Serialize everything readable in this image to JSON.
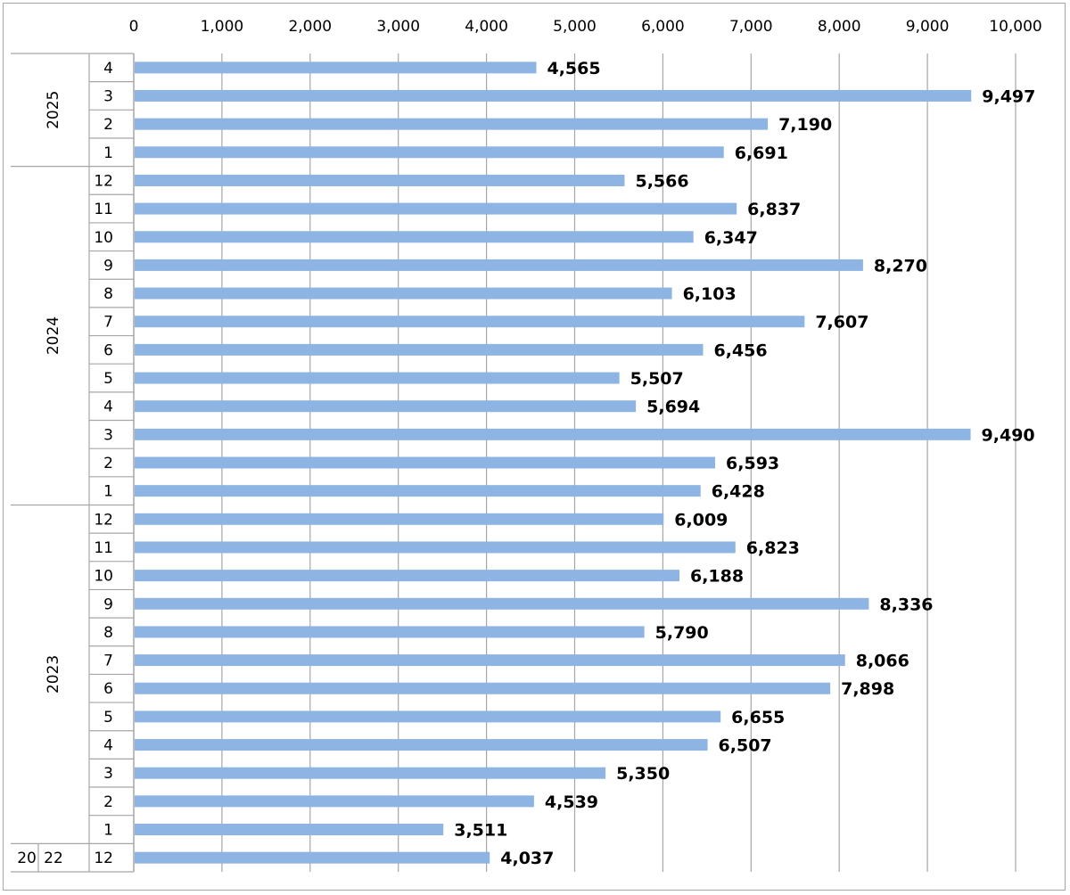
{
  "chart_data": {
    "type": "bar",
    "orientation": "horizontal",
    "xlim": [
      0,
      10000
    ],
    "x_ticks": [
      "0",
      "1,000",
      "2,000",
      "3,000",
      "4,000",
      "5,000",
      "6,000",
      "7,000",
      "8,000",
      "9,000",
      "10,000"
    ],
    "x_axis_position": "top",
    "grid": true,
    "legend": "none",
    "bar_color": "#8eb4e3",
    "categories": [
      {
        "year": "2025",
        "month": "4",
        "value": 4565,
        "label": "4,565"
      },
      {
        "year": "2025",
        "month": "3",
        "value": 9497,
        "label": "9,497"
      },
      {
        "year": "2025",
        "month": "2",
        "value": 7190,
        "label": "7,190"
      },
      {
        "year": "2025",
        "month": "1",
        "value": 6691,
        "label": "6,691"
      },
      {
        "year": "2024",
        "month": "12",
        "value": 5566,
        "label": "5,566"
      },
      {
        "year": "2024",
        "month": "11",
        "value": 6837,
        "label": "6,837"
      },
      {
        "year": "2024",
        "month": "10",
        "value": 6347,
        "label": "6,347"
      },
      {
        "year": "2024",
        "month": "9",
        "value": 8270,
        "label": "8,270"
      },
      {
        "year": "2024",
        "month": "8",
        "value": 6103,
        "label": "6,103"
      },
      {
        "year": "2024",
        "month": "7",
        "value": 7607,
        "label": "7,607"
      },
      {
        "year": "2024",
        "month": "6",
        "value": 6456,
        "label": "6,456"
      },
      {
        "year": "2024",
        "month": "5",
        "value": 5507,
        "label": "5,507"
      },
      {
        "year": "2024",
        "month": "4",
        "value": 5694,
        "label": "5,694"
      },
      {
        "year": "2024",
        "month": "3",
        "value": 9490,
        "label": "9,490"
      },
      {
        "year": "2024",
        "month": "2",
        "value": 6593,
        "label": "6,593"
      },
      {
        "year": "2024",
        "month": "1",
        "value": 6428,
        "label": "6,428"
      },
      {
        "year": "2023",
        "month": "12",
        "value": 6009,
        "label": "6,009"
      },
      {
        "year": "2023",
        "month": "11",
        "value": 6823,
        "label": "6,823"
      },
      {
        "year": "2023",
        "month": "10",
        "value": 6188,
        "label": "6,188"
      },
      {
        "year": "2023",
        "month": "9",
        "value": 8336,
        "label": "8,336"
      },
      {
        "year": "2023",
        "month": "8",
        "value": 5790,
        "label": "5,790"
      },
      {
        "year": "2023",
        "month": "7",
        "value": 8066,
        "label": "8,066"
      },
      {
        "year": "2023",
        "month": "6",
        "value": 7898,
        "label": "7,898"
      },
      {
        "year": "2023",
        "month": "5",
        "value": 6655,
        "label": "6,655"
      },
      {
        "year": "2023",
        "month": "4",
        "value": 6507,
        "label": "6,507"
      },
      {
        "year": "2023",
        "month": "3",
        "value": 5350,
        "label": "5,350"
      },
      {
        "year": "2023",
        "month": "2",
        "value": 4539,
        "label": "4,539"
      },
      {
        "year": "2023",
        "month": "1",
        "value": 3511,
        "label": "3,511"
      },
      {
        "year": "2022",
        "month": "12",
        "value": 4037,
        "label": "4,037"
      }
    ],
    "year_groups": [
      {
        "year": "2025",
        "label": "2025"
      },
      {
        "year": "2024",
        "label": "2024"
      },
      {
        "year": "2023",
        "label": "2023"
      },
      {
        "year": "2022",
        "label": "20 22"
      }
    ]
  }
}
